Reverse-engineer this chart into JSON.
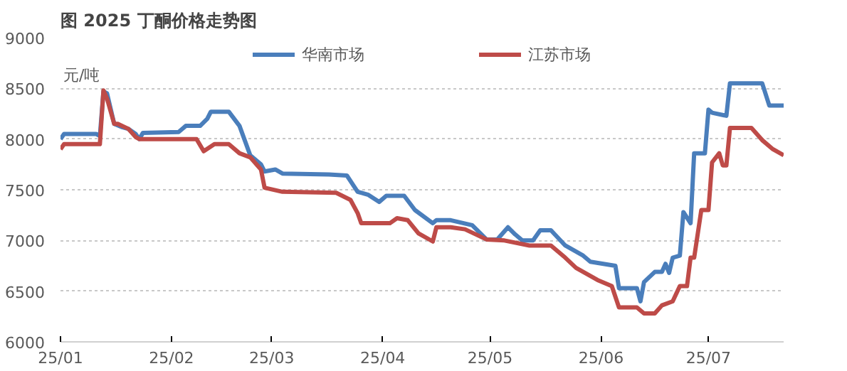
{
  "chart_data": {
    "type": "line",
    "title": "图 2025 丁酮价格走势图",
    "ylabel": "元/吨",
    "ylim": [
      6000,
      9000
    ],
    "yticks": [
      6000,
      6500,
      7000,
      7500,
      8000,
      8500,
      9000
    ],
    "xlim": [
      "2025-01-01",
      "2025-07-22"
    ],
    "xticks": [
      {
        "value": "2025-01-01",
        "label": "25/01"
      },
      {
        "value": "2025-02-01",
        "label": "25/02"
      },
      {
        "value": "2025-03-01",
        "label": "25/03"
      },
      {
        "value": "2025-04-01",
        "label": "25/04"
      },
      {
        "value": "2025-05-01",
        "label": "25/05"
      },
      {
        "value": "2025-06-01",
        "label": "25/06"
      },
      {
        "value": "2025-07-01",
        "label": "25/07"
      }
    ],
    "grid": "y",
    "legend": "top",
    "marker": "none",
    "line_style": "solid",
    "series": [
      {
        "name": "华南市场",
        "color": "#4a7ebb",
        "x": [
          "2025-01-01",
          "2025-01-02",
          "2025-01-11",
          "2025-01-12",
          "2025-01-13",
          "2025-01-14",
          "2025-01-15",
          "2025-01-16",
          "2025-01-18",
          "2025-01-20",
          "2025-01-22",
          "2025-01-23",
          "2025-01-24",
          "2025-02-03",
          "2025-02-05",
          "2025-02-09",
          "2025-02-11",
          "2025-02-12",
          "2025-02-17",
          "2025-02-20",
          "2025-02-23",
          "2025-02-26",
          "2025-02-27",
          "2025-03-02",
          "2025-03-04",
          "2025-03-17",
          "2025-03-22",
          "2025-03-25",
          "2025-03-28",
          "2025-03-31",
          "2025-04-02",
          "2025-04-07",
          "2025-04-10",
          "2025-04-15",
          "2025-04-16",
          "2025-04-20",
          "2025-04-26",
          "2025-04-30",
          "2025-05-03",
          "2025-05-06",
          "2025-05-08",
          "2025-05-10",
          "2025-05-13",
          "2025-05-15",
          "2025-05-18",
          "2025-05-22",
          "2025-05-27",
          "2025-05-29",
          "2025-06-05",
          "2025-06-06",
          "2025-06-11",
          "2025-06-12",
          "2025-06-13",
          "2025-06-16",
          "2025-06-18",
          "2025-06-19",
          "2025-06-20",
          "2025-06-21",
          "2025-06-23",
          "2025-06-24",
          "2025-06-26",
          "2025-06-27",
          "2025-06-30",
          "2025-07-01",
          "2025-07-02",
          "2025-07-06",
          "2025-07-07",
          "2025-07-16",
          "2025-07-18",
          "2025-07-22"
        ],
        "values": [
          8000,
          8050,
          8050,
          8030,
          8470,
          8450,
          8300,
          8150,
          8120,
          8100,
          8050,
          8000,
          8060,
          8070,
          8130,
          8130,
          8200,
          8270,
          8270,
          8130,
          7840,
          7750,
          7680,
          7700,
          7660,
          7650,
          7640,
          7480,
          7450,
          7380,
          7440,
          7440,
          7300,
          7170,
          7200,
          7200,
          7150,
          7010,
          7010,
          7130,
          7060,
          7000,
          7000,
          7100,
          7100,
          6950,
          6850,
          6790,
          6750,
          6530,
          6530,
          6400,
          6590,
          6690,
          6690,
          6770,
          6680,
          6830,
          6850,
          7280,
          7170,
          7860,
          7860,
          8290,
          8260,
          8230,
          8550,
          8550,
          8330,
          8330
        ]
      },
      {
        "name": "江苏市场",
        "color": "#be4b48",
        "x": [
          "2025-01-01",
          "2025-01-02",
          "2025-01-12",
          "2025-01-13",
          "2025-01-14",
          "2025-01-16",
          "2025-01-17",
          "2025-01-20",
          "2025-01-22",
          "2025-01-23",
          "2025-02-08",
          "2025-02-10",
          "2025-02-13",
          "2025-02-17",
          "2025-02-20",
          "2025-02-23",
          "2025-02-26",
          "2025-02-27",
          "2025-03-04",
          "2025-03-19",
          "2025-03-23",
          "2025-03-25",
          "2025-03-26",
          "2025-04-03",
          "2025-04-05",
          "2025-04-08",
          "2025-04-11",
          "2025-04-15",
          "2025-04-16",
          "2025-04-20",
          "2025-04-24",
          "2025-04-30",
          "2025-05-05",
          "2025-05-12",
          "2025-05-18",
          "2025-05-22",
          "2025-05-25",
          "2025-05-31",
          "2025-06-04",
          "2025-06-06",
          "2025-06-11",
          "2025-06-13",
          "2025-06-16",
          "2025-06-18",
          "2025-06-21",
          "2025-06-23",
          "2025-06-25",
          "2025-06-26",
          "2025-06-27",
          "2025-06-29",
          "2025-07-01",
          "2025-07-02",
          "2025-07-04",
          "2025-07-05",
          "2025-07-06",
          "2025-07-07",
          "2025-07-13",
          "2025-07-16",
          "2025-07-19",
          "2025-07-22"
        ],
        "values": [
          7900,
          7950,
          7950,
          8480,
          8400,
          8150,
          8150,
          8100,
          8020,
          8000,
          8000,
          7880,
          7950,
          7950,
          7860,
          7820,
          7700,
          7520,
          7480,
          7470,
          7400,
          7270,
          7170,
          7170,
          7220,
          7200,
          7070,
          6990,
          7130,
          7130,
          7110,
          7010,
          7000,
          6950,
          6950,
          6830,
          6730,
          6610,
          6550,
          6340,
          6340,
          6280,
          6280,
          6360,
          6400,
          6550,
          6550,
          6830,
          6830,
          7300,
          7300,
          7770,
          7860,
          7740,
          7740,
          8110,
          8110,
          7990,
          7900,
          7840
        ]
      }
    ]
  }
}
